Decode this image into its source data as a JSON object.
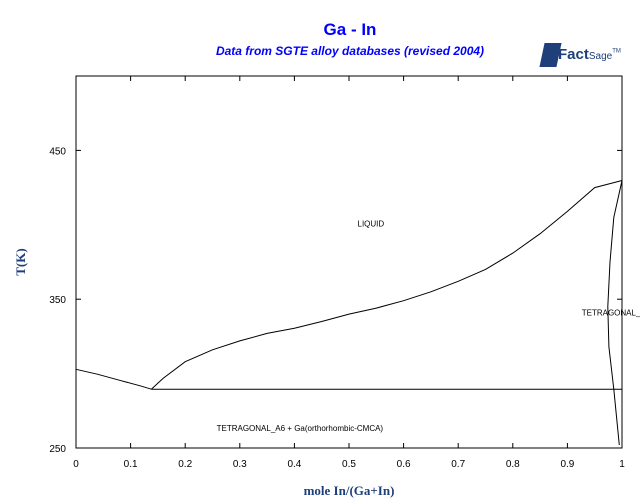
{
  "title": "Ga - In",
  "subtitle": "Data from SGTE alloy databases (revised 2004)",
  "logo": {
    "fact": "Fact",
    "sage": "Sage",
    "tm": "TM"
  },
  "chart_data": {
    "type": "line",
    "xlabel": "mole In/(Ga+In)",
    "ylabel": "T(K)",
    "xlim": [
      0,
      1
    ],
    "ylim": [
      250,
      500
    ],
    "x_ticks": [
      "0",
      "0.1",
      "0.2",
      "0.3",
      "0.4",
      "0.5",
      "0.6",
      "0.7",
      "0.8",
      "0.9",
      "1"
    ],
    "y_ticks": [
      "250",
      "350",
      "450"
    ],
    "grid": false,
    "series": [
      {
        "x": [
          0,
          0.04,
          0.08,
          0.12,
          0.138
        ],
        "y": [
          302.9,
          299.5,
          295.5,
          291.5,
          289.5
        ]
      },
      {
        "x": [
          0.138,
          0.16,
          0.2,
          0.25,
          0.3,
          0.35,
          0.4,
          0.45,
          0.5,
          0.55,
          0.6,
          0.65,
          0.7,
          0.75,
          0.8,
          0.85,
          0.9,
          0.95,
          1.0
        ],
        "y": [
          289.5,
          297,
          308,
          316,
          322,
          327,
          330.5,
          335,
          340,
          344,
          349,
          355,
          362,
          370,
          381,
          394,
          409,
          425,
          429.8
        ]
      },
      {
        "x": [
          0.138,
          1.0
        ],
        "y": [
          289.5,
          289.5
        ]
      },
      {
        "x": [
          1.0,
          0.985,
          0.978,
          0.974,
          0.976,
          0.985,
          0.995
        ],
        "y": [
          429.8,
          405,
          375,
          345,
          318,
          289.5,
          252
        ]
      }
    ],
    "annotations": [
      {
        "text": "LIQUID",
        "x": 0.54,
        "y": 399
      },
      {
        "text": "TETRAGONAL_",
        "x": 0.98,
        "y": 339
      },
      {
        "text": "TETRAGONAL_A6 + Ga(orthorhombic-CMCA)",
        "x": 0.41,
        "y": 261.5
      }
    ]
  }
}
